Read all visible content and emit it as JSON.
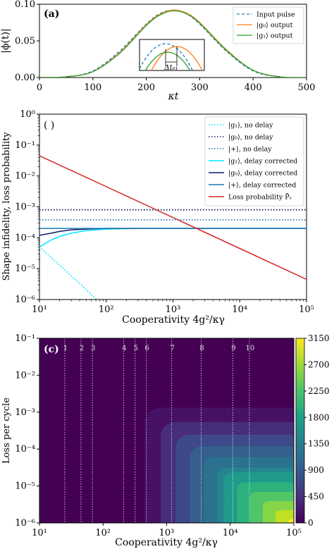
{
  "chart_data": [
    {
      "panel": "(a)",
      "type": "line",
      "xlabel": "κt",
      "ylabel": "|ϕ(t)|",
      "xlim": [
        0,
        500
      ],
      "ylim": [
        0,
        0.1
      ],
      "xticks": [
        "0",
        "100",
        "200",
        "300",
        "400",
        "500"
      ],
      "yticks": [
        "0.00",
        "0.05",
        "0.10"
      ],
      "legend_position": "top-right",
      "series": [
        {
          "name": "Input pulse",
          "color": "#1f77b4",
          "style": "dashed",
          "x": [
            0,
            50,
            100,
            150,
            200,
            225,
            250,
            275,
            300,
            350,
            400,
            450,
            500
          ],
          "y": [
            0.0,
            0.001,
            0.009,
            0.036,
            0.073,
            0.087,
            0.092,
            0.087,
            0.073,
            0.036,
            0.009,
            0.001,
            0.0
          ]
        },
        {
          "name": "|g₀⟩ output",
          "color": "#ff7f0e",
          "style": "solid",
          "x": [
            0,
            50,
            100,
            150,
            200,
            225,
            250,
            275,
            300,
            350,
            400,
            450,
            500
          ],
          "y": [
            0.0,
            0.001,
            0.008,
            0.034,
            0.072,
            0.086,
            0.092,
            0.088,
            0.075,
            0.038,
            0.01,
            0.001,
            0.0
          ]
        },
        {
          "name": "|g₁⟩ output",
          "color": "#2ca02c",
          "style": "solid",
          "x": [
            0,
            50,
            100,
            150,
            200,
            225,
            250,
            275,
            300,
            350,
            400,
            450,
            500
          ],
          "y": [
            0.0,
            0.001,
            0.008,
            0.033,
            0.071,
            0.085,
            0.091,
            0.087,
            0.074,
            0.037,
            0.01,
            0.001,
            0.0
          ]
        }
      ],
      "inset_label": "Δt₀₁"
    },
    {
      "panel": "( )",
      "type": "line",
      "xlabel": "Cooperativity 4g²/κγ",
      "ylabel": "Shape infidelity, loss probability",
      "xscale": "log",
      "yscale": "log",
      "xlim": [
        10,
        100000
      ],
      "ylim": [
        1e-06,
        1
      ],
      "xticks": [
        "10¹",
        "10²",
        "10³",
        "10⁴",
        "10⁵"
      ],
      "yticks": [
        "10⁻⁶",
        "10⁻⁵",
        "10⁻⁴",
        "10⁻³",
        "10⁻²",
        "10⁻¹",
        "10⁰"
      ],
      "legend_position": "top-right",
      "series": [
        {
          "name": "|g₁⟩, no delay",
          "color": "#00e5ff",
          "style": "dotted",
          "x": [
            10,
            20,
            40,
            70
          ],
          "y": [
            5e-05,
            1.3e-05,
            3.3e-06,
            1.05e-06
          ]
        },
        {
          "name": "|g₀⟩, no delay",
          "color": "#0a1a6e",
          "style": "dotted",
          "x": [
            10,
            100000
          ],
          "y": [
            0.0008,
            0.0008
          ]
        },
        {
          "name": "|+⟩, no delay",
          "color": "#1f77b4",
          "style": "dotted",
          "x": [
            10,
            100000
          ],
          "y": [
            0.00038,
            0.00038
          ]
        },
        {
          "name": "|g₁⟩, delay corrected",
          "color": "#00e5ff",
          "style": "solid",
          "x": [
            10,
            15,
            20,
            30,
            50,
            100,
            300,
            1000,
            100000
          ],
          "y": [
            5e-05,
            8.5e-05,
            0.00011,
            0.00014,
            0.00017,
            0.00019,
            0.0002,
            0.0002,
            0.0002
          ]
        },
        {
          "name": "|g₀⟩, delay corrected",
          "color": "#0a1a6e",
          "style": "solid",
          "x": [
            10,
            15,
            20,
            30,
            50,
            100,
            300,
            1000,
            100000
          ],
          "y": [
            0.00012,
            0.00014,
            0.00016,
            0.00018,
            0.00019,
            0.0002,
            0.0002,
            0.0002,
            0.0002
          ]
        },
        {
          "name": "|+⟩, delay corrected",
          "color": "#1f77b4",
          "style": "solid",
          "x": [
            10,
            100000
          ],
          "y": [
            0.0002,
            0.0002
          ]
        },
        {
          "name": "Loss probability P̄ₛ",
          "color": "#d62728",
          "style": "solid",
          "x": [
            10,
            100000
          ],
          "y": [
            0.045,
            4.5e-06
          ]
        }
      ]
    },
    {
      "panel": "(c)",
      "type": "heatmap",
      "xlabel": "Cooperativity 4g²/κγ",
      "ylabel": "Loss per cycle",
      "xscale": "log",
      "yscale": "log",
      "xlim": [
        10,
        100000
      ],
      "ylim": [
        1e-06,
        0.1
      ],
      "xticks": [
        "10¹",
        "10²",
        "10³",
        "10⁴",
        "10⁵"
      ],
      "yticks": [
        "10⁻⁶",
        "10⁻⁵",
        "10⁻⁴",
        "10⁻³",
        "10⁻²",
        "10⁻¹"
      ],
      "colorbar_ticks": [
        "0",
        "450",
        "900",
        "1350",
        "1800",
        "2250",
        "2700",
        "3150"
      ],
      "colorbar_range": [
        0,
        3150
      ],
      "vlines": [
        {
          "label": "1",
          "x": 25
        },
        {
          "label": "2",
          "x": 45
        },
        {
          "label": "3",
          "x": 68
        },
        {
          "label": "4",
          "x": 210
        },
        {
          "label": "5",
          "x": 320
        },
        {
          "label": "6",
          "x": 480
        },
        {
          "label": "7",
          "x": 1200
        },
        {
          "label": "8",
          "x": 3500
        },
        {
          "label": "9",
          "x": 11000
        },
        {
          "label": "10",
          "x": 20000
        }
      ]
    }
  ]
}
